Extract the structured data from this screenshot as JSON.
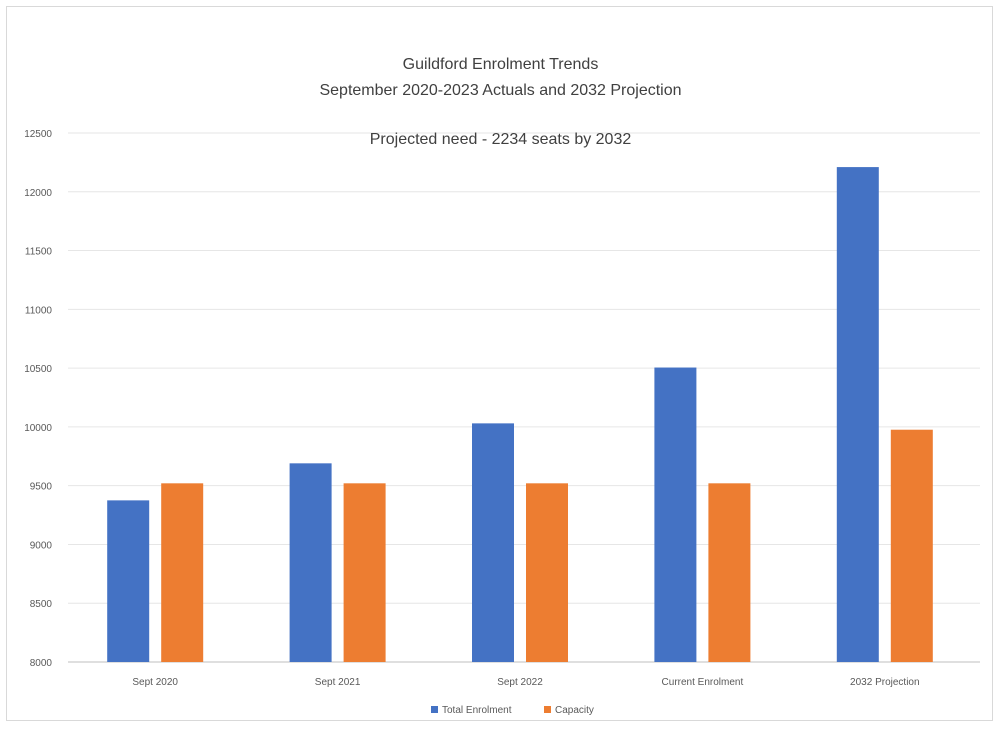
{
  "chart_data": {
    "type": "bar",
    "title": "Guildford Enrolment Trends",
    "subtitle": "September 2020-2023 Actuals and 2032 Projection",
    "annotation": "Projected need - 2234 seats by 2032",
    "xlabel": "",
    "ylabel": "",
    "ylim": [
      8000,
      12500
    ],
    "yticks": [
      8000,
      8500,
      9000,
      9500,
      10000,
      10500,
      11000,
      11500,
      12000,
      12500
    ],
    "grid": true,
    "legend_position": "bottom",
    "categories": [
      "Sept 2020",
      "Sept 2021",
      "Sept 2022",
      "Current Enrolment",
      "2032 Projection"
    ],
    "series": [
      {
        "name": "Total Enrolment",
        "color": "#4472c4",
        "values": [
          9375,
          9690,
          10030,
          10505,
          12210
        ]
      },
      {
        "name": "Capacity",
        "color": "#ed7d31",
        "values": [
          9520,
          9520,
          9520,
          9520,
          9976
        ]
      }
    ]
  }
}
